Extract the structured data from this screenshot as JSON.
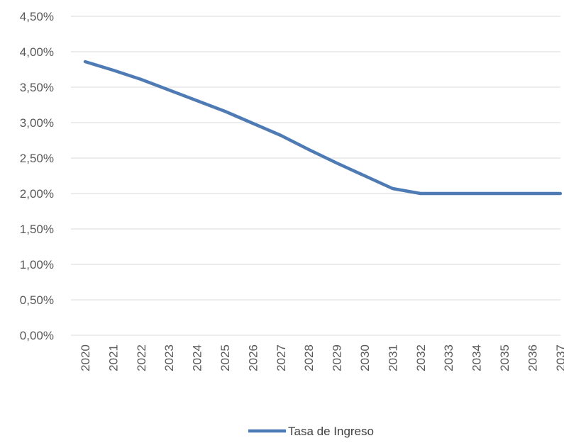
{
  "chart_data": {
    "type": "line",
    "title": "",
    "xlabel": "",
    "ylabel": "",
    "x": [
      "2020",
      "2021",
      "2022",
      "2023",
      "2024",
      "2025",
      "2026",
      "2027",
      "2028",
      "2029",
      "2030",
      "2031",
      "2032",
      "2033",
      "2034",
      "2035",
      "2036",
      "2037"
    ],
    "series": [
      {
        "name": "Tasa de Ingreso",
        "color": "#4f7bb5",
        "values": [
          3.86,
          3.74,
          3.61,
          3.46,
          3.31,
          3.16,
          2.99,
          2.82,
          2.62,
          2.43,
          2.25,
          2.07,
          2.0,
          2.0,
          2.0,
          2.0,
          2.0,
          2.0
        ]
      }
    ],
    "ylim": [
      0,
      4.5
    ],
    "yticks": [
      0,
      0.5,
      1.0,
      1.5,
      2.0,
      2.5,
      3.0,
      3.5,
      4.0,
      4.5
    ],
    "ytick_labels": [
      "0,00%",
      "0,50%",
      "1,00%",
      "1,50%",
      "2,00%",
      "2,50%",
      "3,00%",
      "3,50%",
      "4,00%",
      "4,50%"
    ],
    "grid": true,
    "legend_position": "bottom"
  }
}
